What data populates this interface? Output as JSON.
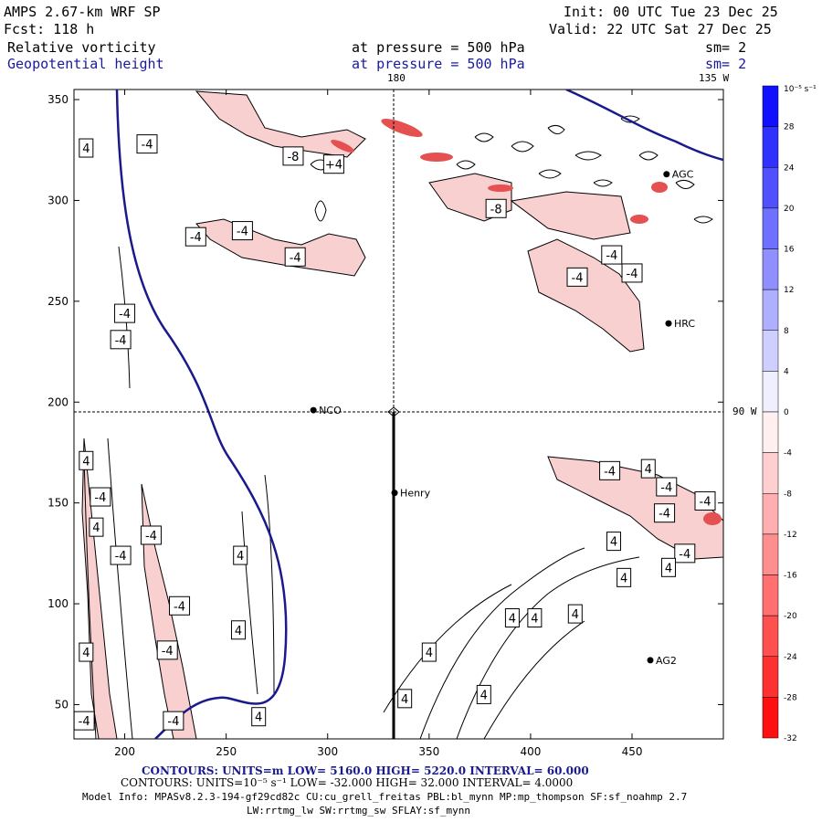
{
  "header": {
    "model": "AMPS 2.67-km WRF SP",
    "forecast": "Fcst:  118 h",
    "init": "Init: 00 UTC Tue 23 Dec 25",
    "valid": "Valid: 22 UTC Sat 27 Dec 25",
    "field1_name": "Relative vorticity",
    "field1_level": "at pressure =  500 hPa",
    "field1_smooth": "sm= 2",
    "field2_name": "Geopotential height",
    "field2_level": "at pressure =  500 hPa",
    "field2_smooth": "sm= 2",
    "lon_180": "180",
    "lon_135w": "135 W",
    "lon_90w": "90 W"
  },
  "colors": {
    "height_contour": "#1a1a8c",
    "neg_shade": "#f7c6c6",
    "neg_strong": "#e03030",
    "cross_line": "#000000"
  },
  "chart_data": {
    "type": "contour",
    "title": "Relative vorticity and Geopotential height at 500 hPa",
    "xlim": [
      175,
      495
    ],
    "ylim": [
      33,
      355
    ],
    "x_ticks": [
      200,
      250,
      300,
      350,
      400,
      450
    ],
    "y_ticks": [
      50,
      100,
      150,
      200,
      250,
      300,
      350
    ],
    "crosshair": {
      "x": 333,
      "y": 196
    },
    "cross_section_line": {
      "x": 333,
      "y_from": 196,
      "y_to": 33
    },
    "stations": [
      {
        "name": "NCO",
        "x": 293,
        "y": 196
      },
      {
        "name": "Henry",
        "x": 333,
        "y": 155
      },
      {
        "name": "HRC",
        "x": 468,
        "y": 239
      },
      {
        "name": "AG2",
        "x": 459,
        "y": 72
      },
      {
        "name": "AGC",
        "x": 467,
        "y": 313
      }
    ],
    "contour_labels": [
      {
        "text": "4",
        "x": 181,
        "y": 326
      },
      {
        "text": "-4",
        "x": 211,
        "y": 328
      },
      {
        "text": "-8",
        "x": 283,
        "y": 322
      },
      {
        "text": "+4",
        "x": 303,
        "y": 318
      },
      {
        "text": "-4",
        "x": 235,
        "y": 282
      },
      {
        "text": "-4",
        "x": 258,
        "y": 285
      },
      {
        "text": "-4",
        "x": 284,
        "y": 272
      },
      {
        "text": "-8",
        "x": 383,
        "y": 296
      },
      {
        "text": "-4",
        "x": 440,
        "y": 273
      },
      {
        "text": "-4",
        "x": 423,
        "y": 262
      },
      {
        "text": "-4",
        "x": 450,
        "y": 264
      },
      {
        "text": "-4",
        "x": 200,
        "y": 244
      },
      {
        "text": "-4",
        "x": 198,
        "y": 231
      },
      {
        "text": "4",
        "x": 181,
        "y": 171
      },
      {
        "text": "-4",
        "x": 188,
        "y": 153
      },
      {
        "text": "4",
        "x": 186,
        "y": 138
      },
      {
        "text": "-4",
        "x": 198,
        "y": 124
      },
      {
        "text": "-4",
        "x": 213,
        "y": 134
      },
      {
        "text": "4",
        "x": 257,
        "y": 124
      },
      {
        "text": "-4",
        "x": 227,
        "y": 99
      },
      {
        "text": "4",
        "x": 256,
        "y": 87
      },
      {
        "text": "-4",
        "x": 221,
        "y": 77
      },
      {
        "text": "4",
        "x": 181,
        "y": 76
      },
      {
        "text": "-4",
        "x": 224,
        "y": 42
      },
      {
        "text": "-4",
        "x": 180,
        "y": 42
      },
      {
        "text": "4",
        "x": 266,
        "y": 44
      },
      {
        "text": "4",
        "x": 458,
        "y": 167
      },
      {
        "text": "-4",
        "x": 439,
        "y": 166
      },
      {
        "text": "-4",
        "x": 467,
        "y": 158
      },
      {
        "text": "-4",
        "x": 486,
        "y": 151
      },
      {
        "text": "-4",
        "x": 466,
        "y": 145
      },
      {
        "text": "4",
        "x": 441,
        "y": 131
      },
      {
        "text": "-4",
        "x": 476,
        "y": 125
      },
      {
        "text": "4",
        "x": 468,
        "y": 118
      },
      {
        "text": "4",
        "x": 446,
        "y": 113
      },
      {
        "text": "4",
        "x": 402,
        "y": 93
      },
      {
        "text": "4",
        "x": 391,
        "y": 93
      },
      {
        "text": "4",
        "x": 422,
        "y": 95
      },
      {
        "text": "4",
        "x": 350,
        "y": 76
      },
      {
        "text": "4",
        "x": 377,
        "y": 55
      },
      {
        "text": "4",
        "x": 338,
        "y": 53
      }
    ],
    "colorbar": {
      "units": "10⁻⁵ s⁻¹",
      "levels": [
        32,
        28,
        24,
        20,
        16,
        12,
        8,
        4,
        0,
        -4,
        -8,
        -12,
        -16,
        -20,
        -24,
        -28,
        -32
      ]
    },
    "contour_info_height": {
      "units": "m",
      "low": "5160.0",
      "high": "5220.0",
      "interval": "60.000"
    },
    "contour_info_vort": {
      "units": "10⁻⁵ s⁻¹",
      "low": "-32.000",
      "high": "32.000",
      "interval": "4.0000"
    }
  },
  "footer": {
    "line1": "CONTOURS:  UNITS=m  LOW=  5160.0           HIGH=  5220.0           INTERVAL=   60.000",
    "line2": "CONTOURS:  UNITS=10⁻⁵ s⁻¹  LOW=  -32.000        HIGH=  32.000         INTERVAL=    4.0000",
    "line3": "Model Info: MPASv8.2.3-194-gf29cd82c CU:cu_grell_freitas PBL:bl_mynn MP:mp_thompson SF:sf_noahmp 2.7",
    "line4": "LW:rrtmg_lw SW:rrtmg_sw SFLAY:sf_mynn"
  }
}
